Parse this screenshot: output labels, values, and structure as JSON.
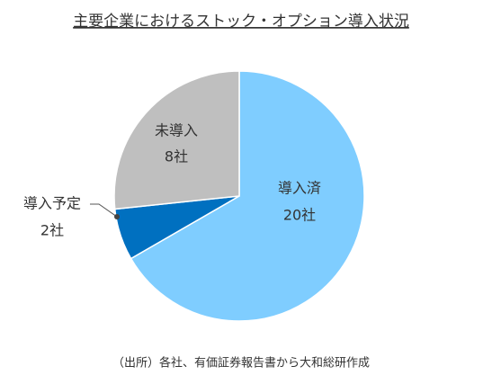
{
  "chart_data": {
    "type": "pie",
    "title": "主要企業におけるストック・オプション導入状況",
    "categories": [
      "導入済",
      "導入予定",
      "未導入"
    ],
    "values": [
      20,
      2,
      8
    ],
    "value_labels": [
      "20社",
      "2社",
      "8社"
    ],
    "colors": [
      "#7fcdff",
      "#0070c0",
      "#bfbfbf"
    ],
    "source": "（出所）各社、有価証券報告書から大和総研作成"
  }
}
